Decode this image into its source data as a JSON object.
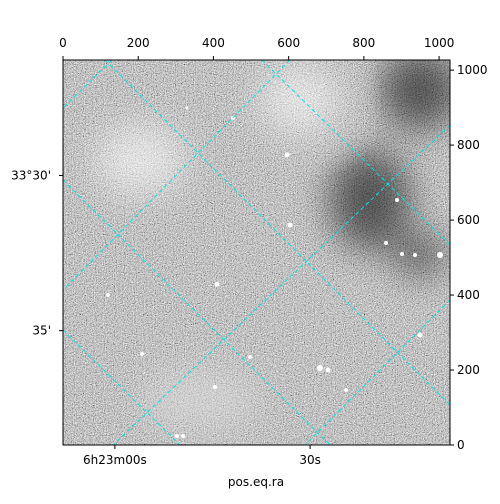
{
  "chart_data": {
    "type": "image",
    "x_label": "pos.eq.ra",
    "xlim": [
      0,
      1029
    ],
    "ylim": [
      0,
      1027
    ],
    "xticks": [
      0,
      200,
      400,
      600,
      800,
      1000
    ],
    "yticks": [
      0,
      200,
      400,
      600,
      800,
      1000
    ],
    "ra_ticks": [
      {
        "value": 138,
        "label": "6h23m00s"
      },
      {
        "value": 657,
        "label": "30s"
      }
    ],
    "dec_ticks": [
      {
        "value": 719,
        "label": "33°30'"
      },
      {
        "value": 305,
        "label": "35'"
      }
    ],
    "grid_color": "#00e5e5"
  }
}
